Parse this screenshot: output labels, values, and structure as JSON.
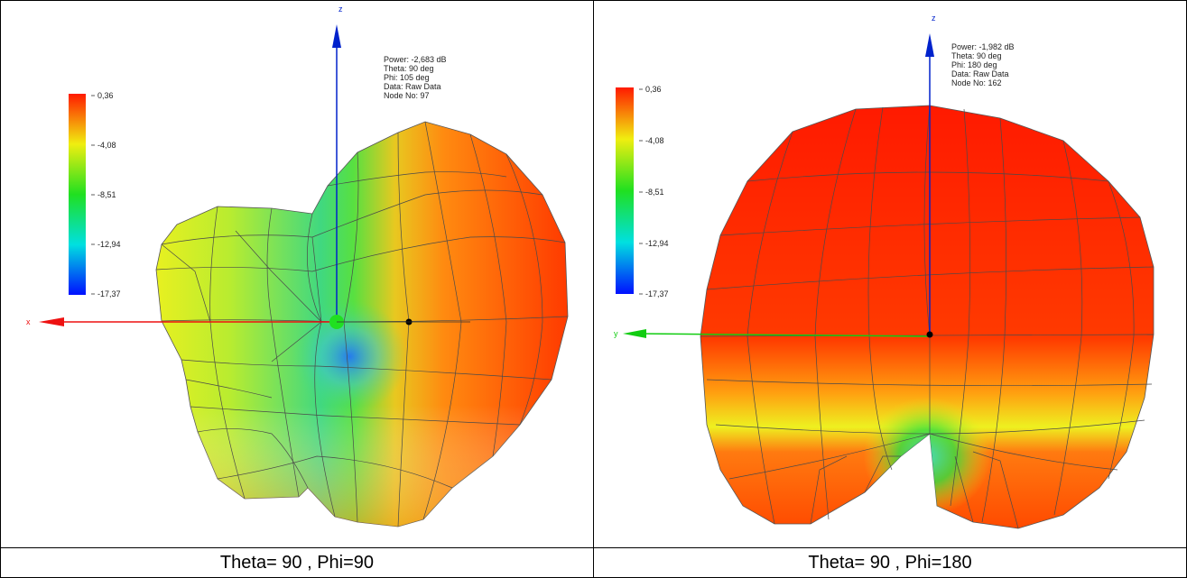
{
  "panels": [
    {
      "caption": "Theta= 90 , Phi=90",
      "info": [
        "Power: -2,683 dB",
        "Theta: 90 deg",
        "Phi: 105 deg",
        "Data: Raw Data",
        "Node No: 97"
      ],
      "scale_labels": [
        "0,36",
        "-4,08",
        "-8,51",
        "-12,94",
        "-17,37"
      ],
      "axes": {
        "vertical": "z",
        "horizontal": "x"
      }
    },
    {
      "caption": "Theta= 90 , Phi=180",
      "info": [
        "Power: -1,982 dB",
        "Theta: 90 deg",
        "Phi: 180 deg",
        "Data: Raw Data",
        "Node No: 162"
      ],
      "scale_labels": [
        "0,36",
        "-4,08",
        "-8,51",
        "-12,94",
        "-17,37"
      ],
      "axes": {
        "vertical": "z",
        "horizontal": "y"
      }
    }
  ],
  "colors": {
    "max": "#ff1a00",
    "orange": "#ff6a00",
    "yellow": "#f0ee10",
    "green": "#20e020",
    "cyan": "#00e0e0",
    "blue": "#0010ff",
    "z_axis": "#0022cc",
    "x_axis": "#ee1111",
    "y_axis": "#11cc11"
  }
}
